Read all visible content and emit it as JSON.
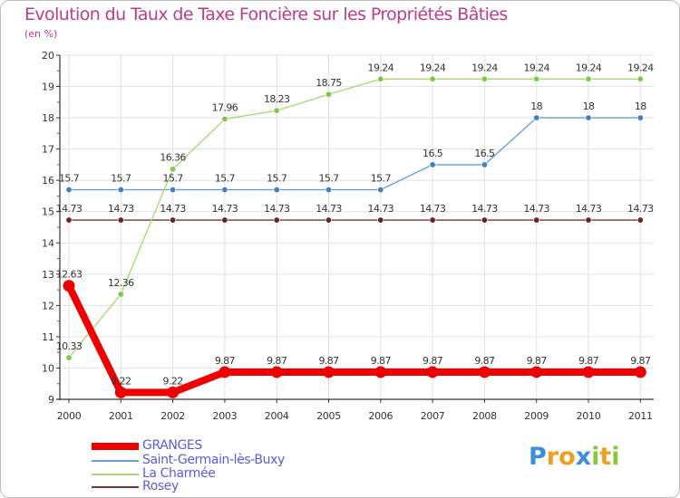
{
  "chart_data": {
    "type": "line",
    "title": "Evolution du Taux de Taxe Foncière sur les Propriétés Bâties",
    "unit_label": "(en %)",
    "x": [
      "2000",
      "2001",
      "2002",
      "2003",
      "2004",
      "2005",
      "2006",
      "2007",
      "2008",
      "2009",
      "2010",
      "2011"
    ],
    "ylim": [
      9,
      20
    ],
    "yticks": [
      "9",
      "10",
      "11",
      "12",
      "13",
      "14",
      "15",
      "16",
      "17",
      "18",
      "19",
      "20"
    ],
    "series": [
      {
        "name": "GRANGES",
        "color": "#ee0000",
        "values": [
          12.63,
          9.22,
          9.22,
          9.87,
          9.87,
          9.87,
          9.87,
          9.87,
          9.87,
          9.87,
          9.87,
          9.87
        ],
        "labels": [
          "12.63",
          "9.22",
          "9.22",
          "9.87",
          "9.87",
          "9.87",
          "9.87",
          "9.87",
          "9.87",
          "9.87",
          "9.87",
          "9.87"
        ]
      },
      {
        "name": "Saint-Germain-lès-Buxy",
        "color": "#6a9fd0",
        "marker": "#3f82c4",
        "values": [
          15.7,
          15.7,
          15.7,
          15.7,
          15.7,
          15.7,
          15.7,
          16.5,
          16.5,
          18,
          18,
          18
        ],
        "labels": [
          "15.7",
          "15.7",
          "15.7",
          "15.7",
          "15.7",
          "15.7",
          "15.7",
          "16.5",
          "16.5",
          "18",
          "18",
          "18"
        ]
      },
      {
        "name": "La Charmée",
        "color": "#a8dc7a",
        "marker": "#80c84a",
        "values": [
          10.33,
          12.36,
          16.36,
          17.96,
          18.23,
          18.75,
          19.24,
          19.24,
          19.24,
          19.24,
          19.24,
          19.24
        ],
        "labels": [
          "10.33",
          "12.36",
          "16.36",
          "17.96",
          "18.23",
          "18.75",
          "19.24",
          "19.24",
          "19.24",
          "19.24",
          "19.24",
          "19.24"
        ]
      },
      {
        "name": "Rosey",
        "color": "#7b3030",
        "marker": "#6a2424",
        "values": [
          14.73,
          14.73,
          14.73,
          14.73,
          14.73,
          14.73,
          14.73,
          14.73,
          14.73,
          14.73,
          14.73,
          14.73
        ],
        "labels": [
          "14.73",
          "14.73",
          "14.73",
          "14.73",
          "14.73",
          "14.73",
          "14.73",
          "14.73",
          "14.73",
          "14.73",
          "14.73",
          "14.73"
        ]
      }
    ]
  },
  "legend": {
    "items": [
      "GRANGES",
      "Saint-Germain-lès-Buxy",
      "La Charmée",
      "Rosey"
    ]
  },
  "logo": {
    "letters": [
      "P",
      "r",
      "o",
      "x",
      "i",
      "t",
      "i"
    ],
    "colors": [
      "#3a8fd8",
      "#f0a020",
      "#f0a020",
      "#3a8fd8",
      "#8cc63f",
      "#f0a020",
      "#8cc63f"
    ]
  }
}
